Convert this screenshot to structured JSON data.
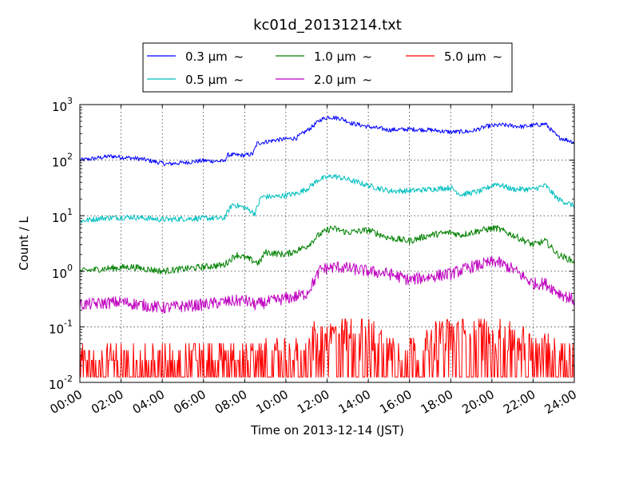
{
  "chart_data": {
    "type": "line",
    "title": "kc01d_20131214.txt",
    "xlabel": "Time on 2013-12-14 (JST)",
    "ylabel": "Count / L",
    "x_ticks": [
      "00:00",
      "02:00",
      "04:00",
      "06:00",
      "08:00",
      "10:00",
      "12:00",
      "14:00",
      "16:00",
      "18:00",
      "20:00",
      "22:00",
      "24:00"
    ],
    "x_range_hours": [
      0,
      24
    ],
    "y_scale": "log",
    "y_range": [
      0.01,
      1000
    ],
    "y_ticks": [
      {
        "value": 0.01,
        "base": "10",
        "exp": "-2"
      },
      {
        "value": 0.1,
        "base": "10",
        "exp": "-1"
      },
      {
        "value": 1,
        "base": "10",
        "exp": "0"
      },
      {
        "value": 10,
        "base": "10",
        "exp": "1"
      },
      {
        "value": 100,
        "base": "10",
        "exp": "2"
      },
      {
        "value": 1000,
        "base": "10",
        "exp": "3"
      }
    ],
    "grid": true,
    "legend_position": "top, above plot",
    "series": [
      {
        "name": "0.3 μm  ~",
        "color": "#0000ff",
        "noise": 0.04,
        "keypoints": [
          [
            0,
            100
          ],
          [
            0.5,
            105
          ],
          [
            1.5,
            118
          ],
          [
            3,
            105
          ],
          [
            4.2,
            85
          ],
          [
            5,
            90
          ],
          [
            6,
            98
          ],
          [
            7,
            95
          ],
          [
            7.2,
            125
          ],
          [
            8,
            122
          ],
          [
            8.4,
            130
          ],
          [
            8.6,
            200
          ],
          [
            9.5,
            230
          ],
          [
            10.5,
            250
          ],
          [
            11.2,
            380
          ],
          [
            11.7,
            540
          ],
          [
            12.1,
            600
          ],
          [
            12.7,
            560
          ],
          [
            13.2,
            460
          ],
          [
            14,
            400
          ],
          [
            15,
            350
          ],
          [
            16,
            360
          ],
          [
            17,
            350
          ],
          [
            18,
            320
          ],
          [
            19,
            330
          ],
          [
            19.8,
            410
          ],
          [
            20.5,
            430
          ],
          [
            21.5,
            400
          ],
          [
            22.6,
            450
          ],
          [
            23.2,
            260
          ],
          [
            24,
            210
          ]
        ]
      },
      {
        "name": "0.5 μm  ~",
        "color": "#00bfbf",
        "noise": 0.05,
        "keypoints": [
          [
            0,
            8
          ],
          [
            1,
            9
          ],
          [
            2.5,
            9.5
          ],
          [
            4,
            8.5
          ],
          [
            5,
            8.8
          ],
          [
            6,
            9
          ],
          [
            7,
            9
          ],
          [
            7.4,
            16
          ],
          [
            8,
            14
          ],
          [
            8.5,
            11
          ],
          [
            8.8,
            22
          ],
          [
            9.5,
            22
          ],
          [
            10.5,
            25
          ],
          [
            11,
            30
          ],
          [
            11.6,
            45
          ],
          [
            12.3,
            52
          ],
          [
            13,
            45
          ],
          [
            14,
            35
          ],
          [
            15,
            28
          ],
          [
            16,
            28
          ],
          [
            17,
            30
          ],
          [
            18,
            32
          ],
          [
            18.5,
            24
          ],
          [
            19.5,
            28
          ],
          [
            20.2,
            38
          ],
          [
            21,
            30
          ],
          [
            22,
            30
          ],
          [
            22.6,
            35
          ],
          [
            23.2,
            20
          ],
          [
            24,
            15
          ]
        ]
      },
      {
        "name": "1.0 μm  ~",
        "color": "#008000",
        "noise": 0.06,
        "keypoints": [
          [
            0,
            1.0
          ],
          [
            1,
            1.1
          ],
          [
            2.5,
            1.2
          ],
          [
            4,
            1.0
          ],
          [
            5,
            1.1
          ],
          [
            6,
            1.2
          ],
          [
            7,
            1.3
          ],
          [
            7.6,
            2.0
          ],
          [
            8.3,
            1.6
          ],
          [
            8.7,
            1.4
          ],
          [
            9,
            2.2
          ],
          [
            10,
            2.0
          ],
          [
            11,
            2.8
          ],
          [
            11.6,
            4.5
          ],
          [
            12.2,
            6.0
          ],
          [
            13,
            5.0
          ],
          [
            14,
            5.5
          ],
          [
            15,
            4.0
          ],
          [
            16,
            3.5
          ],
          [
            17,
            4.5
          ],
          [
            18,
            5.0
          ],
          [
            18.5,
            4.5
          ],
          [
            19.5,
            5.5
          ],
          [
            20.2,
            6.0
          ],
          [
            21,
            4.5
          ],
          [
            22,
            3.0
          ],
          [
            22.6,
            3.5
          ],
          [
            23.2,
            2.0
          ],
          [
            24,
            1.5
          ]
        ]
      },
      {
        "name": "2.0 μm  ~",
        "color": "#bf00bf",
        "noise": 0.11,
        "keypoints": [
          [
            0,
            0.25
          ],
          [
            2,
            0.28
          ],
          [
            4,
            0.22
          ],
          [
            6,
            0.25
          ],
          [
            7,
            0.28
          ],
          [
            8,
            0.3
          ],
          [
            8.5,
            0.25
          ],
          [
            9.5,
            0.3
          ],
          [
            10.5,
            0.35
          ],
          [
            11,
            0.4
          ],
          [
            11.3,
            0.6
          ],
          [
            11.7,
            1.1
          ],
          [
            12.5,
            1.2
          ],
          [
            14,
            1.0
          ],
          [
            15,
            0.9
          ],
          [
            16,
            0.7
          ],
          [
            17,
            0.8
          ],
          [
            18,
            0.9
          ],
          [
            19,
            1.2
          ],
          [
            20.2,
            1.5
          ],
          [
            21,
            1.1
          ],
          [
            22,
            0.6
          ],
          [
            22.6,
            0.6
          ],
          [
            23.3,
            0.4
          ],
          [
            24,
            0.3
          ]
        ]
      },
      {
        "name": "5.0 μm  ~",
        "color": "#ff0000",
        "noise": 0,
        "spiky": true,
        "keypoints": [
          [
            0,
            0.015
          ],
          [
            11,
            0.02
          ],
          [
            11.2,
            0.04
          ],
          [
            14,
            0.05
          ],
          [
            15.5,
            0.02
          ],
          [
            16.5,
            0.025
          ],
          [
            17.5,
            0.05
          ],
          [
            20,
            0.05
          ],
          [
            22,
            0.03
          ],
          [
            24,
            0.02
          ]
        ]
      }
    ]
  }
}
